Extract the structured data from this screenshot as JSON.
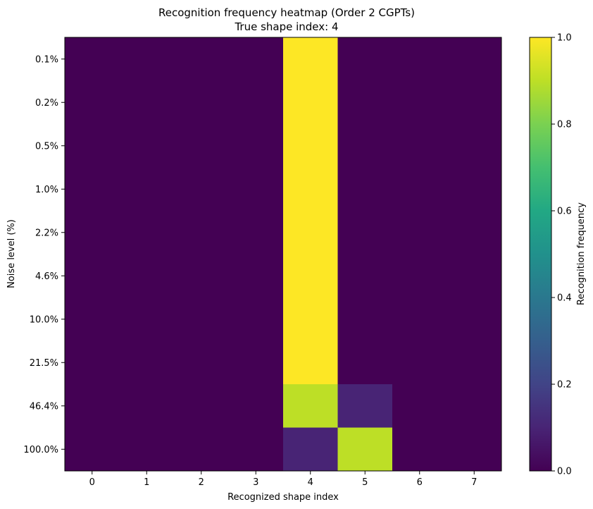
{
  "chart_data": {
    "type": "heatmap",
    "title": "Recognition frequency heatmap (Order 2 CGPTs)",
    "subtitle": "True shape index: 4",
    "xlabel": "Recognized shape index",
    "ylabel": "Noise level (%)",
    "x_categories": [
      "0",
      "1",
      "2",
      "3",
      "4",
      "5",
      "6",
      "7"
    ],
    "y_categories": [
      "0.1%",
      "0.2%",
      "0.5%",
      "1.0%",
      "2.2%",
      "4.6%",
      "10.0%",
      "21.5%",
      "46.4%",
      "100.0%"
    ],
    "values": [
      [
        0,
        0,
        0,
        0,
        1.0,
        0,
        0,
        0
      ],
      [
        0,
        0,
        0,
        0,
        1.0,
        0,
        0,
        0
      ],
      [
        0,
        0,
        0,
        0,
        1.0,
        0,
        0,
        0
      ],
      [
        0,
        0,
        0,
        0,
        1.0,
        0,
        0,
        0
      ],
      [
        0,
        0,
        0,
        0,
        1.0,
        0,
        0,
        0
      ],
      [
        0,
        0,
        0,
        0,
        1.0,
        0,
        0,
        0
      ],
      [
        0,
        0,
        0,
        0,
        1.0,
        0,
        0,
        0
      ],
      [
        0,
        0,
        0,
        0,
        1.0,
        0,
        0,
        0
      ],
      [
        0,
        0,
        0,
        0,
        0.9,
        0.1,
        0,
        0
      ],
      [
        0,
        0,
        0,
        0,
        0.1,
        0.9,
        0,
        0
      ]
    ],
    "colormap": "viridis",
    "colorbar": {
      "label": "Recognition frequency",
      "range": [
        0,
        1
      ],
      "ticks": [
        "0.0",
        "0.2",
        "0.4",
        "0.6",
        "0.8",
        "1.0"
      ]
    }
  }
}
